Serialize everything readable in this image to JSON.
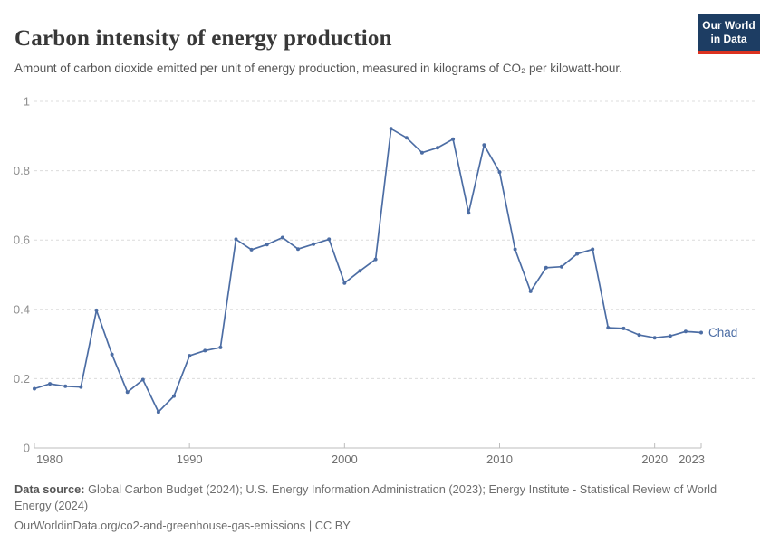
{
  "header": {
    "logo": {
      "line1": "Our World",
      "line2": "in Data",
      "bg_color": "#1d3d63",
      "bar_color": "#dc3220"
    }
  },
  "chart_data": {
    "type": "line",
    "title": "Carbon intensity of energy production",
    "subtitle": "Amount of carbon dioxide emitted per unit of energy production, measured in kilograms of CO₂ per kilowatt-hour.",
    "x": [
      1980,
      1981,
      1982,
      1983,
      1984,
      1985,
      1986,
      1987,
      1988,
      1989,
      1990,
      1991,
      1992,
      1993,
      1994,
      1995,
      1996,
      1997,
      1998,
      1999,
      2000,
      2001,
      2002,
      2003,
      2004,
      2005,
      2006,
      2007,
      2008,
      2009,
      2010,
      2011,
      2012,
      2013,
      2014,
      2015,
      2016,
      2017,
      2018,
      2019,
      2020,
      2021,
      2022,
      2023
    ],
    "series": [
      {
        "name": "Chad",
        "color": "#4C6DA4",
        "values": [
          0.171,
          0.185,
          0.178,
          0.176,
          0.397,
          0.27,
          0.161,
          0.197,
          0.104,
          0.15,
          0.266,
          0.281,
          0.29,
          0.602,
          0.572,
          0.587,
          0.607,
          0.574,
          0.588,
          0.602,
          0.476,
          0.511,
          0.544,
          0.921,
          0.895,
          0.852,
          0.866,
          0.891,
          0.678,
          0.874,
          0.796,
          0.573,
          0.452,
          0.52,
          0.523,
          0.56,
          0.573,
          0.347,
          0.345,
          0.326,
          0.318,
          0.323,
          0.336,
          0.333
        ]
      }
    ],
    "xlabel": "",
    "ylabel": "",
    "ylim": [
      0,
      1
    ],
    "yticks": [
      0,
      0.2,
      0.4,
      0.6,
      0.8,
      1
    ],
    "xticks": [
      1980,
      1990,
      2000,
      2010,
      2020,
      2023
    ],
    "grid": "horizontal-dashed",
    "legend_position": "end-of-line-label",
    "colors": {
      "grid": "#dcdcdc",
      "axis": "#bdbdbd",
      "ytick_text": "#8f8f8f",
      "xtick_text": "#707070"
    }
  },
  "footer": {
    "datasource_label": "Data source:",
    "datasource_text": " Global Carbon Budget (2024); U.S. Energy Information Administration (2023); Energy Institute - Statistical Review of World Energy (2024)",
    "link_line": "OurWorldinData.org/co2-and-greenhouse-gas-emissions | CC BY"
  }
}
